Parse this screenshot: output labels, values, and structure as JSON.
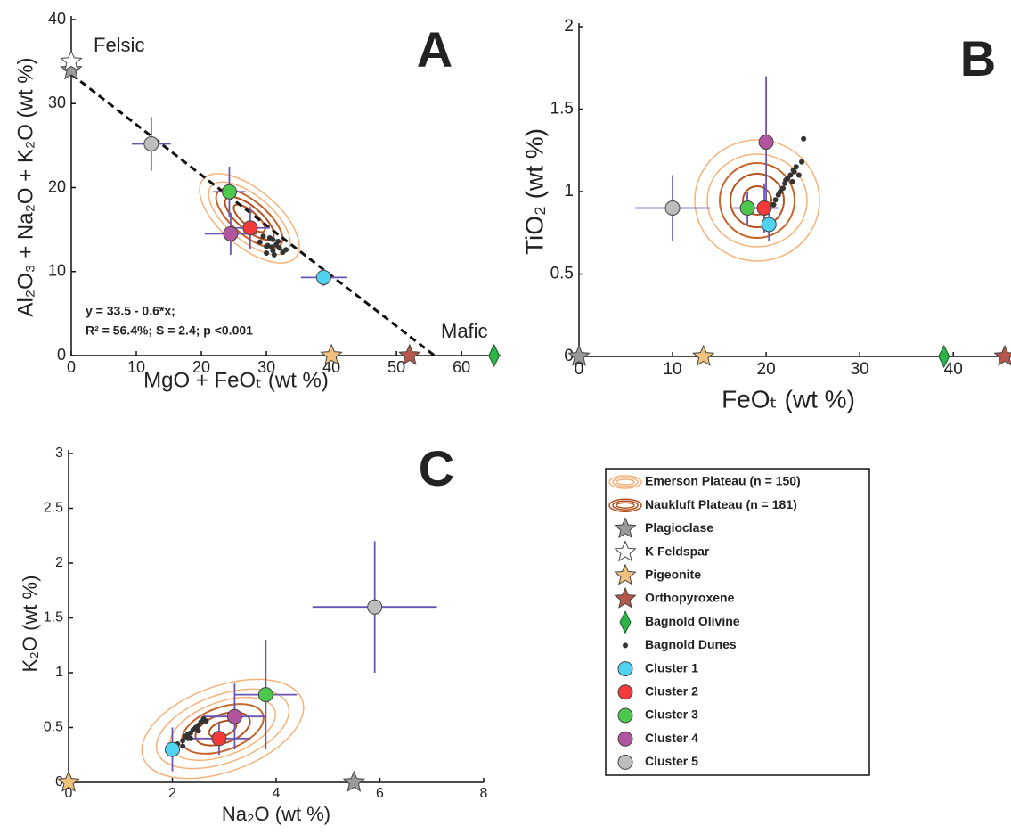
{
  "chart_data": [
    {
      "type": "scatter",
      "panel_label": "A",
      "xlabel": "MgO + FeOₜ (wt %)",
      "ylabel": "Al₂O₃ + Na₂O + K₂O (wt %)",
      "xlim": [
        0,
        66
      ],
      "ylim": [
        0,
        40
      ],
      "xticks": [
        0,
        10,
        20,
        30,
        40,
        50,
        60
      ],
      "yticks": [
        0,
        10,
        20,
        30,
        40
      ],
      "annotations": [
        "Felsic",
        "Mafic",
        "y = 33.5 - 0.6*x;",
        "R² = 56.4%; S = 2.4; p <0.001"
      ],
      "fit": {
        "intercept": 33.5,
        "slope": -0.6
      },
      "series": [
        {
          "marker": "star",
          "color": "#9a9a9a",
          "x": [
            0
          ],
          "y": [
            34
          ]
        },
        {
          "marker": "star",
          "color": "#ffffff",
          "x": [
            0
          ],
          "y": [
            35
          ]
        },
        {
          "marker": "star",
          "color": "#f2c27c",
          "x": [
            40
          ],
          "y": [
            0
          ]
        },
        {
          "marker": "star",
          "color": "#b5574a",
          "x": [
            52
          ],
          "y": [
            0
          ]
        },
        {
          "marker": "diamond",
          "color": "#2db34a",
          "x": [
            65
          ],
          "y": [
            0
          ]
        },
        {
          "marker": "dot",
          "color": "#333333",
          "x": [
            29,
            30,
            30.5,
            31,
            31.5,
            32,
            30,
            31,
            32.5,
            29.5,
            30.8,
            31.8,
            33,
            30.2,
            31.2
          ],
          "y": [
            13.5,
            13,
            14,
            12.5,
            13.2,
            12.8,
            12.2,
            13.8,
            12.3,
            14.2,
            12.9,
            13.6,
            12.6,
            13.1,
            12
          ]
        },
        {
          "marker": "circle",
          "color": "#4fd3f0",
          "x": [
            38.8
          ],
          "y": [
            9.3
          ],
          "xerr": [
            3.5
          ],
          "yerr": [
            1
          ]
        },
        {
          "marker": "circle",
          "color": "#f23a3a",
          "x": [
            27.5
          ],
          "y": [
            15.2
          ],
          "xerr": [
            3
          ],
          "yerr": [
            2.5
          ]
        },
        {
          "marker": "circle",
          "color": "#4cc94c",
          "x": [
            24.3
          ],
          "y": [
            19.5
          ],
          "xerr": [
            2.5
          ],
          "yerr": [
            3
          ]
        },
        {
          "marker": "circle",
          "color": "#b0559e",
          "x": [
            24.5
          ],
          "y": [
            14.5
          ],
          "xerr": [
            4
          ],
          "yerr": [
            2.5
          ]
        },
        {
          "marker": "circle",
          "color": "#bdbdbd",
          "x": [
            12.3
          ],
          "y": [
            25.2
          ],
          "xerr": [
            3
          ],
          "yerr": [
            3.2
          ]
        }
      ]
    },
    {
      "type": "scatter",
      "panel_label": "B",
      "xlabel": "FeOₜ (wt %)",
      "ylabel": "TiO₂ (wt %)",
      "xlim": [
        0,
        45.5
      ],
      "ylim": [
        0,
        2
      ],
      "xticks": [
        0,
        10,
        20,
        30,
        40
      ],
      "yticks": [
        0,
        0.5,
        1,
        1.5,
        2
      ],
      "series": [
        {
          "marker": "star",
          "color": "#9a9a9a",
          "x": [
            0
          ],
          "y": [
            0
          ]
        },
        {
          "marker": "star",
          "color": "#f2c27c",
          "x": [
            13.3
          ],
          "y": [
            0
          ]
        },
        {
          "marker": "diamond",
          "color": "#2db34a",
          "x": [
            39
          ],
          "y": [
            0
          ]
        },
        {
          "marker": "star",
          "color": "#b5574a",
          "x": [
            45.5
          ],
          "y": [
            0
          ]
        },
        {
          "marker": "dot",
          "color": "#333333",
          "x": [
            21,
            21.5,
            22,
            22.3,
            22.6,
            23,
            23.2,
            21.8,
            22.8,
            23.5,
            21.3,
            22.1,
            22.9,
            20.8,
            23.8,
            24
          ],
          "y": [
            0.95,
            1.0,
            1.05,
            1.08,
            1.1,
            1.12,
            1.15,
            1.02,
            1.06,
            1.1,
            0.98,
            1.07,
            1.13,
            0.92,
            1.18,
            1.32
          ]
        },
        {
          "marker": "circle",
          "color": "#4fd3f0",
          "x": [
            20.3
          ],
          "y": [
            0.8
          ],
          "yerr": [
            0.1
          ]
        },
        {
          "marker": "circle",
          "color": "#f23a3a",
          "x": [
            19.8
          ],
          "y": [
            0.9
          ],
          "xerr": [
            1.5
          ],
          "yerr": [
            0.15
          ]
        },
        {
          "marker": "circle",
          "color": "#4cc94c",
          "x": [
            18
          ],
          "y": [
            0.9
          ],
          "xerr": [
            1.5
          ],
          "yerr": [
            0.1
          ]
        },
        {
          "marker": "circle",
          "color": "#b0559e",
          "x": [
            20
          ],
          "y": [
            1.3
          ],
          "yerr": [
            0.4
          ]
        },
        {
          "marker": "circle",
          "color": "#bdbdbd",
          "x": [
            10
          ],
          "y": [
            0.9
          ],
          "xerr": [
            4
          ],
          "yerr": [
            0.2
          ]
        }
      ]
    },
    {
      "type": "scatter",
      "panel_label": "C",
      "xlabel": "Na₂O (wt %)",
      "ylabel": "K₂O (wt %)",
      "xlim": [
        0,
        8
      ],
      "ylim": [
        0,
        3
      ],
      "xticks": [
        0,
        2,
        4,
        6,
        8
      ],
      "yticks": [
        0,
        0.5,
        1,
        1.5,
        2,
        2.5,
        3
      ],
      "series": [
        {
          "marker": "star",
          "color": "#9a9a9a",
          "x": [
            5.5
          ],
          "y": [
            0
          ]
        },
        {
          "marker": "star",
          "color": "#f2c27c",
          "x": [
            0
          ],
          "y": [
            0
          ]
        },
        {
          "marker": "dot",
          "color": "#333333",
          "x": [
            2.1,
            2.2,
            2.25,
            2.3,
            2.35,
            2.4,
            2.45,
            2.5,
            2.55,
            2.6,
            2.2,
            2.35,
            2.5,
            2.65,
            2.3
          ],
          "y": [
            0.35,
            0.38,
            0.42,
            0.4,
            0.45,
            0.48,
            0.5,
            0.52,
            0.55,
            0.58,
            0.33,
            0.4,
            0.47,
            0.56,
            0.44
          ]
        },
        {
          "marker": "circle",
          "color": "#4fd3f0",
          "x": [
            2.0
          ],
          "y": [
            0.3
          ],
          "yerr": [
            0.2
          ]
        },
        {
          "marker": "circle",
          "color": "#f23a3a",
          "x": [
            2.9
          ],
          "y": [
            0.4
          ],
          "xerr": [
            0.6
          ],
          "yerr": [
            0.15
          ]
        },
        {
          "marker": "circle",
          "color": "#4cc94c",
          "x": [
            3.8
          ],
          "y": [
            0.8
          ],
          "xerr": [
            0.6
          ],
          "yerr": [
            0.5
          ]
        },
        {
          "marker": "circle",
          "color": "#b0559e",
          "x": [
            3.2
          ],
          "y": [
            0.6
          ],
          "xerr": [
            0.6
          ],
          "yerr": [
            0.3
          ]
        },
        {
          "marker": "circle",
          "color": "#bdbdbd",
          "x": [
            5.9
          ],
          "y": [
            1.6
          ],
          "xerr": [
            1.2
          ],
          "yerr": [
            0.6
          ]
        }
      ]
    }
  ],
  "errorbar_color": "#6a55b5",
  "legend": {
    "entries": [
      {
        "label": "Emerson Plateau (n = 150)",
        "marker": "contour",
        "color": "#f6b27a"
      },
      {
        "label": "Naukluft Plateau (n = 181)",
        "marker": "contour",
        "color": "#b5531f"
      },
      {
        "label": "Plagioclase",
        "marker": "star",
        "color": "#9a9a9a"
      },
      {
        "label": "K Feldspar",
        "marker": "star",
        "color": "#ffffff"
      },
      {
        "label": "Pigeonite",
        "marker": "star",
        "color": "#f2c27c"
      },
      {
        "label": "Orthopyroxene",
        "marker": "star",
        "color": "#b5574a"
      },
      {
        "label": "Bagnold Olivine",
        "marker": "diamond",
        "color": "#2db34a"
      },
      {
        "label": "Bagnold Dunes",
        "marker": "dot",
        "color": "#333333"
      },
      {
        "label": "Cluster 1",
        "marker": "circle",
        "color": "#4fd3f0"
      },
      {
        "label": "Cluster 2",
        "marker": "circle",
        "color": "#f23a3a"
      },
      {
        "label": "Cluster 3",
        "marker": "circle",
        "color": "#4cc94c"
      },
      {
        "label": "Cluster 4",
        "marker": "circle",
        "color": "#b0559e"
      },
      {
        "label": "Cluster 5",
        "marker": "circle",
        "color": "#bdbdbd"
      }
    ]
  }
}
